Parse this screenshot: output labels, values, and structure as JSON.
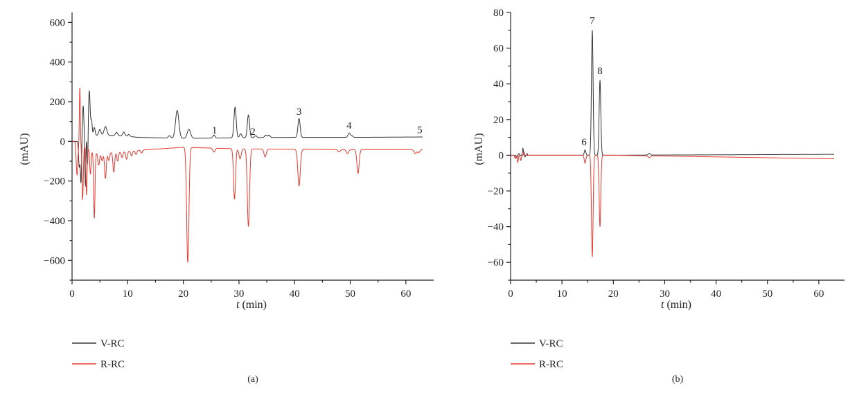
{
  "chart_data": [
    {
      "type": "line",
      "panel_label": "(a)",
      "xlabel_var": "t",
      "xlabel_unit": "(min)",
      "ylabel": "(mAU)",
      "xlim": [
        0,
        65
      ],
      "ylim": [
        -700,
        650
      ],
      "xticks": [
        0,
        10,
        20,
        30,
        40,
        50,
        60
      ],
      "yticks": [
        -600,
        -400,
        -200,
        0,
        200,
        400,
        600
      ],
      "ytick_labels": [
        "−600",
        "−400",
        "−200",
        "0",
        "200",
        "400",
        "600"
      ],
      "legend_position": "bottom-left",
      "series": [
        {
          "name": "V-RC",
          "color": "#333333",
          "baseline": [
            [
              0,
              0
            ],
            [
              1.2,
              0
            ],
            [
              4,
              30
            ],
            [
              8,
              30
            ],
            [
              12,
              20
            ],
            [
              20,
              15
            ],
            [
              30,
              18
            ],
            [
              40,
              20
            ],
            [
              50,
              20
            ],
            [
              63,
              22
            ]
          ],
          "peaks": [
            [
              1.3,
              -130,
              0.12
            ],
            [
              1.6,
              -210,
              0.1
            ],
            [
              2.0,
              170,
              0.12
            ],
            [
              2.4,
              -240,
              0.08
            ],
            [
              2.8,
              -160,
              0.08
            ],
            [
              3.1,
              235,
              0.15
            ],
            [
              3.5,
              80,
              0.12
            ],
            [
              4.0,
              40,
              0.15
            ],
            [
              5.0,
              30,
              0.2
            ],
            [
              6.0,
              45,
              0.25
            ],
            [
              8.0,
              15,
              0.2
            ],
            [
              9.3,
              20,
              0.2
            ],
            [
              10.2,
              10,
              0.2
            ],
            [
              17.5,
              12,
              0.2
            ],
            [
              18.9,
              140,
              0.3
            ],
            [
              21.0,
              45,
              0.3
            ],
            [
              25.5,
              15,
              0.2
            ],
            [
              29.3,
              155,
              0.2
            ],
            [
              30.3,
              20,
              0.2
            ],
            [
              31.7,
              115,
              0.2
            ],
            [
              33.0,
              10,
              0.2
            ],
            [
              34.8,
              12,
              0.2
            ],
            [
              35.4,
              12,
              0.2
            ],
            [
              40.8,
              95,
              0.2
            ],
            [
              49.8,
              22,
              0.2
            ],
            [
              50.3,
              8,
              0.2
            ]
          ]
        },
        {
          "name": "R-RC",
          "color": "#e8382f",
          "baseline": [
            [
              0,
              0
            ],
            [
              1.2,
              0
            ],
            [
              4,
              -60
            ],
            [
              8,
              -55
            ],
            [
              12,
              -45
            ],
            [
              20,
              -30
            ],
            [
              30,
              -38
            ],
            [
              40,
              -40
            ],
            [
              50,
              -42
            ],
            [
              63,
              -42
            ]
          ],
          "peaks": [
            [
              0.9,
              -170,
              0.15
            ],
            [
              1.4,
              280,
              0.08
            ],
            [
              1.9,
              -280,
              0.12
            ],
            [
              2.6,
              -240,
              0.1
            ],
            [
              3.3,
              -120,
              0.12
            ],
            [
              4.0,
              -330,
              0.12
            ],
            [
              4.8,
              -60,
              0.15
            ],
            [
              5.4,
              -40,
              0.15
            ],
            [
              6.0,
              -130,
              0.15
            ],
            [
              6.6,
              -40,
              0.15
            ],
            [
              7.5,
              -100,
              0.15
            ],
            [
              8.2,
              -45,
              0.15
            ],
            [
              9.0,
              -30,
              0.15
            ],
            [
              9.8,
              -40,
              0.15
            ],
            [
              10.7,
              -25,
              0.15
            ],
            [
              11.5,
              -20,
              0.15
            ],
            [
              12.5,
              -15,
              0.15
            ],
            [
              20.8,
              -580,
              0.2
            ],
            [
              25.5,
              -20,
              0.2
            ],
            [
              29.2,
              -255,
              0.18
            ],
            [
              30.2,
              -50,
              0.2
            ],
            [
              31.7,
              -390,
              0.2
            ],
            [
              34.7,
              -40,
              0.2
            ],
            [
              40.8,
              -185,
              0.22
            ],
            [
              48.0,
              -12,
              0.2
            ],
            [
              49.5,
              -20,
              0.2
            ],
            [
              51.4,
              -120,
              0.2
            ],
            [
              61.7,
              -20,
              0.2
            ],
            [
              62.3,
              -15,
              0.2
            ]
          ]
        }
      ],
      "annotations": [
        {
          "text": "1",
          "x": 25.6,
          "y": 25
        },
        {
          "text": "2",
          "x": 32.5,
          "y": 18
        },
        {
          "text": "3",
          "x": 40.8,
          "y": 120
        },
        {
          "text": "4",
          "x": 49.8,
          "y": 50
        },
        {
          "text": "5",
          "x": 62.5,
          "y": 28
        }
      ]
    },
    {
      "type": "line",
      "panel_label": "(b)",
      "xlabel_var": "t",
      "xlabel_unit": "(min)",
      "ylabel": "(mAU)",
      "xlim": [
        0,
        65
      ],
      "ylim": [
        -70,
        80
      ],
      "xticks": [
        0,
        10,
        20,
        30,
        40,
        50,
        60
      ],
      "yticks": [
        -60,
        -40,
        -20,
        0,
        20,
        40,
        60,
        80
      ],
      "ytick_labels": [
        "−60",
        "−40",
        "−20",
        "0",
        "20",
        "40",
        "60",
        "80"
      ],
      "legend_position": "bottom-left",
      "series": [
        {
          "name": "V-RC",
          "color": "#333333",
          "baseline": [
            [
              0,
              0
            ],
            [
              5,
              0
            ],
            [
              20,
              0
            ],
            [
              63,
              0.5
            ]
          ],
          "peaks": [
            [
              1.2,
              -1.5,
              0.1
            ],
            [
              1.6,
              1,
              0.1
            ],
            [
              2.4,
              4,
              0.08
            ],
            [
              2.8,
              -1,
              0.08
            ],
            [
              3.2,
              1,
              0.08
            ],
            [
              14.5,
              3,
              0.15
            ],
            [
              15.9,
              70,
              0.16
            ],
            [
              17.4,
              42,
              0.16
            ],
            [
              27.0,
              1,
              0.2
            ]
          ]
        },
        {
          "name": "R-RC",
          "color": "#e8382f",
          "baseline": [
            [
              0,
              0
            ],
            [
              5,
              0
            ],
            [
              20,
              0
            ],
            [
              63,
              -2
            ]
          ],
          "peaks": [
            [
              0.9,
              -2,
              0.1
            ],
            [
              1.4,
              -4,
              0.1
            ],
            [
              2.0,
              -3,
              0.1
            ],
            [
              2.6,
              2,
              0.08
            ],
            [
              14.5,
              -4.5,
              0.15
            ],
            [
              15.9,
              -57,
              0.16
            ],
            [
              17.4,
              -40,
              0.16
            ],
            [
              27.0,
              -1,
              0.2
            ]
          ]
        }
      ],
      "annotations": [
        {
          "text": "6",
          "x": 14.3,
          "y": 4
        },
        {
          "text": "7",
          "x": 15.9,
          "y": 72
        },
        {
          "text": "8",
          "x": 17.4,
          "y": 44
        }
      ]
    }
  ]
}
